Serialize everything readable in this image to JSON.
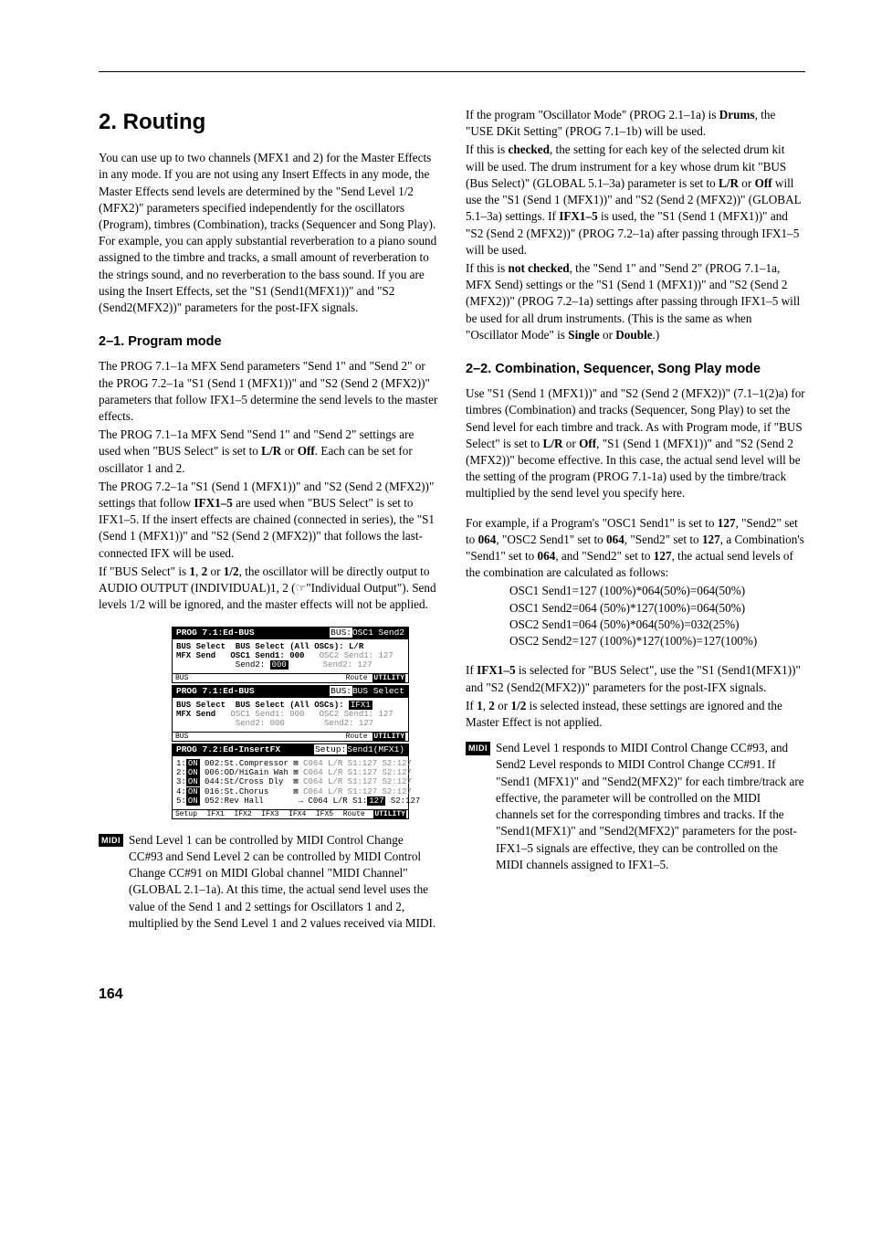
{
  "heading": "2. Routing",
  "intro": "You can use up to two channels (MFX1 and 2) for the Master Effects in any mode. If you are not using any Insert Effects in any mode, the Master Effects send levels are determined by the \"Send Level 1/2 (MFX2)\" parameters specified independently for the oscillators (Program), timbres (Combination), tracks (Sequencer and Song Play). For example, you can apply substantial reverberation to a piano sound assigned to the timbre and tracks, a small amount of reverberation to the strings sound, and no reverberation to the bass sound. If you are using the Insert Effects, set the \"S1 (Send1(MFX1))\" and \"S2 (Send2(MFX2))\" parameters for the post-IFX signals.",
  "section21_title": "2–1. Program mode",
  "section21_p1": "The PROG 7.1–1a MFX Send parameters \"Send 1\" and \"Send 2\" or the PROG 7.2–1a \"S1 (Send 1 (MFX1))\" and \"S2 (Send 2 (MFX2))\" parameters that follow IFX1–5 determine the send levels to the master effects.",
  "section21_p2a": "The PROG 7.1–1a MFX Send \"Send 1\" and \"Send 2\" settings are used when \"BUS Select\" is set to ",
  "section21_p2_lr": "L/R",
  "section21_p2_or": " or ",
  "section21_p2_off": "Off",
  "section21_p2b": ". Each can be set for oscillator 1 and 2.",
  "section21_p3a": "The PROG 7.2–1a \"S1 (Send 1 (MFX1))\" and \"S2 (Send 2 (MFX2))\" settings that follow ",
  "section21_p3_ifx": "IFX1–5",
  "section21_p3b": " are used when \"BUS Select\" is set to IFX1–5. If the insert effects are chained (connected in series), the \"S1 (Send 1 (MFX1))\" and \"S2 (Send 2 (MFX2))\" that follows the last-connected IFX will be used.",
  "section21_p4a": "If \"BUS Select\" is ",
  "b1": "1",
  "b2": "2",
  "b12": "1/2",
  "section21_p4mid": ", the oscillator will be directly output to AUDIO OUTPUT (INDIVIDUAL)1, 2 (☞\"Individual Output\"). Send levels 1/2 will be ignored, and the master effects will not be applied.",
  "lcd1": {
    "title_left": "PROG 7.1:Ed-BUS",
    "title_right_pre": "BUS:",
    "title_right": "OSC1 Send2",
    "r1": "BUS Select  BUS Select (All OSCs): L/R",
    "r2a": "MFX Send   OSC1 Send1: 000   ",
    "r2b": "OSC2 Send1: 127",
    "r3a": "            Send2: ",
    "r3inv": "000",
    "r3b": "       ",
    "r3c": "Send2: 127",
    "tab_l": "BUS",
    "tab_r1": "Route",
    "tab_r2": "UTILITY"
  },
  "lcd2": {
    "title_left": "PROG 7.1:Ed-BUS",
    "title_right_pre": "BUS:",
    "title_right": "BUS Select",
    "r1a": "BUS Select  BUS Select (All OSCs): ",
    "r1inv": "IFX1",
    "r2a": "MFX Send   ",
    "r2b": "OSC1 Send1: 000   OSC2 Send1: 127",
    "r3a": "            ",
    "r3b": "Send2: 000        Send2: 127",
    "tab_l": "BUS",
    "tab_r1": "Route",
    "tab_r2": "UTILITY"
  },
  "lcd3": {
    "title_left": "PROG 7.2:Ed-InsertFX",
    "title_right_pre": "Setup:",
    "title_right": "Send1(MFX1)",
    "rows": [
      {
        "on": "ON",
        "a": "1:",
        "b": " 002:St.Compressor ",
        "c": "⊠ ",
        "g": "C064 L/R S1:127 S2:127"
      },
      {
        "on": "ON",
        "a": "2:",
        "b": " 006:OD/HiGain Wah ",
        "c": "⊠ ",
        "g": "C064 L/R S1:127 S2:127"
      },
      {
        "on": "ON",
        "a": "3:",
        "b": " 044:St/Cross Dly  ",
        "c": "⊠ ",
        "g": "C064 L/R S1:127 S2:127"
      },
      {
        "on": "ON",
        "a": "4:",
        "b": " 016:St.Chorus     ",
        "c": "⊠ ",
        "g": "C064 L/R S1:127 S2:127"
      }
    ],
    "r5a": "5:",
    "r5on": "ON",
    "r5b": " 052:Rev Hall       → C064 L/R S1:",
    "r5inv": "127",
    "r5c": " S2:127",
    "tabs": [
      "Setup",
      "IFX1",
      "IFX2",
      "IFX3",
      "IFX4",
      "IFX5",
      "Route",
      "UTILITY"
    ]
  },
  "midi1": "Send Level 1 can be controlled by MIDI Control Change CC#93 and Send Level 2 can be controlled by MIDI Control Change CC#91 on MIDI Global channel \"MIDI Channel\" (GLOBAL 2.1–1a). At this time, the actual send level uses the value of the Send 1 and 2 settings for Oscillators 1 and 2, multiplied by the Send Level 1 and 2 values received via MIDI.",
  "right_p1a": "If the program \"Oscillator Mode\" (PROG 2.1–1a) is ",
  "drums": "Drums",
  "right_p1b": ", the \"USE DKit Setting\" (PROG 7.1–1b) will be used.",
  "right_p2a": "If this is ",
  "checked": "checked",
  "right_p2b": ", the setting for each key of the selected drum kit will be used. The drum instrument for a key whose drum kit \"BUS (Bus Select)\" (GLOBAL 5.1–3a) parameter is set to ",
  "right_p2c": " will use the \"S1 (Send 1 (MFX1))\" and \"S2 (Send 2 (MFX2))\" (GLOBAL 5.1–3a) settings. If ",
  "ifx15": "IFX1–5",
  "right_p2d": " is used, the \"S1 (Send 1 (MFX1))\" and \"S2 (Send 2 (MFX2))\" (PROG 7.2–1a) after passing through IFX1–5 will be used.",
  "right_p3a": "If this is ",
  "notchecked": "not checked",
  "right_p3b": ", the \"Send 1\" and \"Send 2\" (PROG 7.1–1a, MFX Send) settings or the \"S1 (Send 1 (MFX1))\" and \"S2 (Send 2 (MFX2))\" (PROG 7.2–1a) settings after passing through IFX1–5 will be used for all drum instruments. (This is the same as when \"Oscillator Mode\" is ",
  "single": "Single",
  "double": "Double",
  "right_p3c": ".)",
  "section22_title": "2–2. Combination, Sequencer, Song Play mode",
  "section22_p1a": "Use \"S1 (Send 1 (MFX1))\" and \"S2 (Send 2 (MFX2))\" (7.1–1(2)a) for timbres (Combination) and tracks (Sequencer, Song Play) to set the Send level for each timbre and track. As with Program mode, if \"BUS Select\" is set to ",
  "section22_p1b": ", \"S1 (Send 1 (MFX1))\" and \"S2 (Send 2 (MFX2))\" become effective. In this case, the actual send level will be the setting of the program (PROG 7.1-1a) used by the timbre/track multiplied by the send level you specify here.",
  "example_p_a": "For example, if a Program's \"OSC1 Send1\" is set to ",
  "v127": "127",
  "example_p_b": ", \"Send2\" set to ",
  "v064": "064",
  "example_p_c": ", \"OSC2 Send1\" set to ",
  "example_p_d": ", \"Send2\" set to ",
  "example_p_e": ", a Combination's \"Send1\" set to ",
  "example_p_f": ", and \"Send2\" set to ",
  "example_p_g": ", the actual send levels of the combination are calculated as follows:",
  "calc1": "OSC1 Send1=127 (100%)*064(50%)=064(50%)",
  "calc2": "OSC1 Send2=064 (50%)*127(100%)=064(50%)",
  "calc3": "OSC2 Send1=064 (50%)*064(50%)=032(25%)",
  "calc4": "OSC2 Send2=127 (100%)*127(100%)=127(100%)",
  "post1a": "If ",
  "post1b": " is selected for \"BUS Select\", use the \"S1 (Send1(MFX1))\" and \"S2 (Send2(MFX2))\" parameters for the post-IFX signals.",
  "post2a": "If ",
  "post2b": " is selected instead, these settings are ignored and the Master Effect is not applied.",
  "midi2": "Send Level 1 responds to MIDI Control Change CC#93, and Send2 Level responds to MIDI Control Change CC#91. If \"Send1 (MFX1)\" and \"Send2(MFX2)\" for each timbre/track are effective, the parameter will be controlled on the MIDI channels set for the corresponding timbres and tracks. If the \"Send1(MFX1)\" and \"Send2(MFX2)\" parameters for the post-IFX1–5 signals are effective, they can be controlled on the MIDI channels assigned to IFX1–5.",
  "midi_badge": "MIDI",
  "page_num": "164"
}
